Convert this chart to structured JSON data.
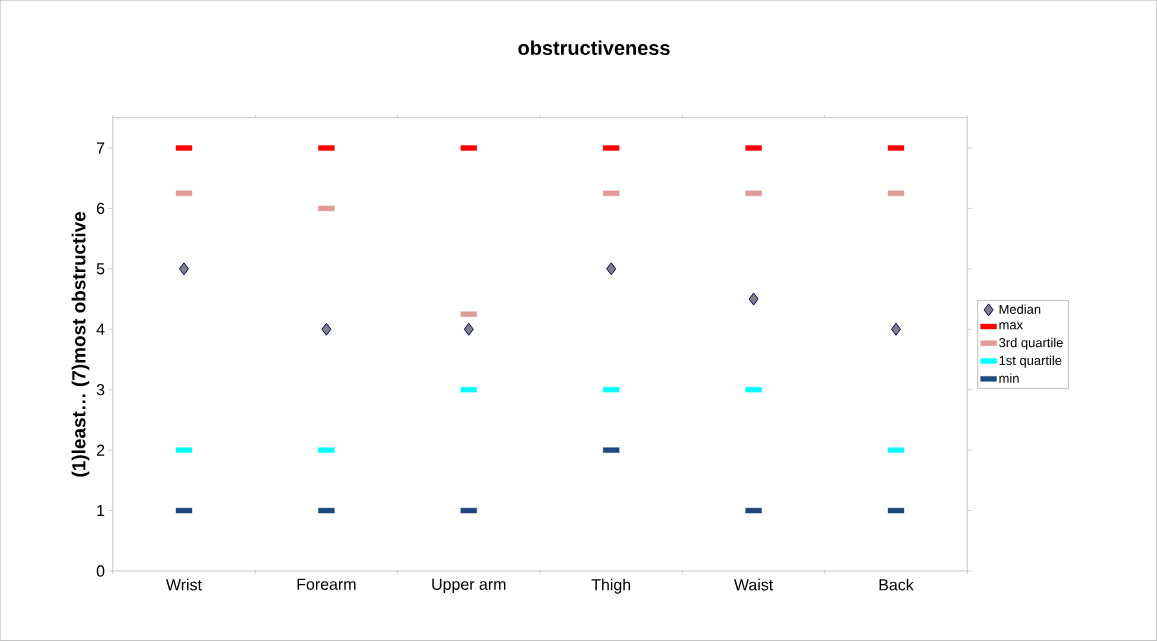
{
  "chart_data": {
    "type": "scatter",
    "title": "obstructiveness",
    "ylabel": "(1)least… (7)most obstructive",
    "categories": [
      "Wrist",
      "Forearm",
      "Upper arm",
      "Thigh",
      "Waist",
      "Back"
    ],
    "series": [
      {
        "name": "Median",
        "color": "#808080",
        "marker": "diamond",
        "values": [
          5,
          4,
          4,
          5,
          4.5,
          4
        ]
      },
      {
        "name": "max",
        "color": "#ff0000",
        "values": [
          7,
          7,
          7,
          7,
          7,
          7
        ]
      },
      {
        "name": "3rd quartile",
        "color": "#e09a98",
        "values": [
          6.25,
          6,
          4.25,
          6.25,
          6.25,
          6.25
        ]
      },
      {
        "name": "1st quartile",
        "color": "#00ffff",
        "values": [
          2,
          2,
          3,
          3,
          3,
          2
        ]
      },
      {
        "name": "min",
        "color": "#1f497d",
        "values": [
          1,
          1,
          1,
          2,
          1,
          1
        ]
      }
    ],
    "ylim": [
      0,
      7.5
    ],
    "yticks": [
      0,
      1,
      2,
      3,
      4,
      5,
      6,
      7
    ],
    "legend": "right",
    "grid": false
  }
}
